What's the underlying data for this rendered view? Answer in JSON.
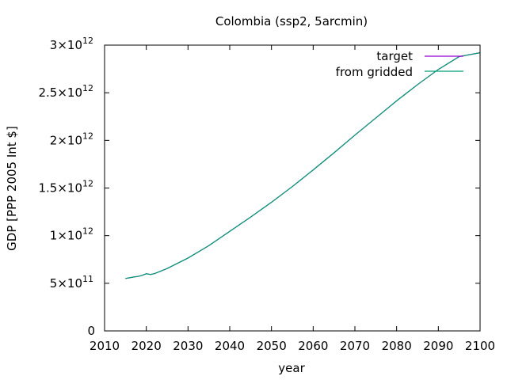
{
  "chart_data": {
    "type": "line",
    "title": "Colombia (ssp2, 5arcmin)",
    "xlabel": "year",
    "ylabel": "GDP [PPP 2005 Int $]",
    "xlim": [
      2010,
      2100
    ],
    "ylim": [
      0,
      3000000000000
    ],
    "x_ticks": [
      2010,
      2020,
      2030,
      2040,
      2050,
      2060,
      2070,
      2080,
      2090,
      2100
    ],
    "x_tick_labels": [
      "2010",
      "2020",
      "2030",
      "2040",
      "2050",
      "2060",
      "2070",
      "2080",
      "2090",
      "2100"
    ],
    "y_ticks": [
      0,
      500000000000,
      1000000000000,
      1500000000000,
      2000000000000,
      2500000000000,
      3000000000000
    ],
    "y_tick_labels": [
      {
        "mantissa": "0",
        "exponent": ""
      },
      {
        "mantissa": "5×10",
        "exponent": "11"
      },
      {
        "mantissa": "1×10",
        "exponent": "12"
      },
      {
        "mantissa": "1.5×10",
        "exponent": "12"
      },
      {
        "mantissa": "2×10",
        "exponent": "12"
      },
      {
        "mantissa": "2.5×10",
        "exponent": "12"
      },
      {
        "mantissa": "3×10",
        "exponent": "12"
      }
    ],
    "grid": false,
    "legend_position": "top-right",
    "x": [
      2015,
      2016,
      2017,
      2018,
      2019,
      2020,
      2021,
      2022,
      2023,
      2025,
      2030,
      2035,
      2040,
      2045,
      2050,
      2055,
      2060,
      2065,
      2070,
      2075,
      2080,
      2085,
      2090,
      2095,
      2100
    ],
    "series": [
      {
        "name": "target",
        "color": "#9400d3",
        "values": [
          550000000000.0,
          558000000000.0,
          566000000000.0,
          572000000000.0,
          583000000000.0,
          600000000000.0,
          592000000000.0,
          602000000000.0,
          620000000000.0,
          655000000000.0,
          765000000000.0,
          895000000000.0,
          1045000000000.0,
          1195000000000.0,
          1350000000000.0,
          1515000000000.0,
          1690000000000.0,
          1870000000000.0,
          2055000000000.0,
          2235000000000.0,
          2415000000000.0,
          2585000000000.0,
          2745000000000.0,
          2880000000000.0,
          2920000000000.0
        ]
      },
      {
        "name": "from gridded",
        "color": "#009e73",
        "values": [
          550000000000.0,
          558000000000.0,
          566000000000.0,
          572000000000.0,
          583000000000.0,
          600000000000.0,
          592000000000.0,
          602000000000.0,
          620000000000.0,
          655000000000.0,
          765000000000.0,
          895000000000.0,
          1045000000000.0,
          1195000000000.0,
          1350000000000.0,
          1515000000000.0,
          1690000000000.0,
          1870000000000.0,
          2055000000000.0,
          2235000000000.0,
          2415000000000.0,
          2585000000000.0,
          2745000000000.0,
          2880000000000.0,
          2920000000000.0
        ]
      }
    ]
  }
}
